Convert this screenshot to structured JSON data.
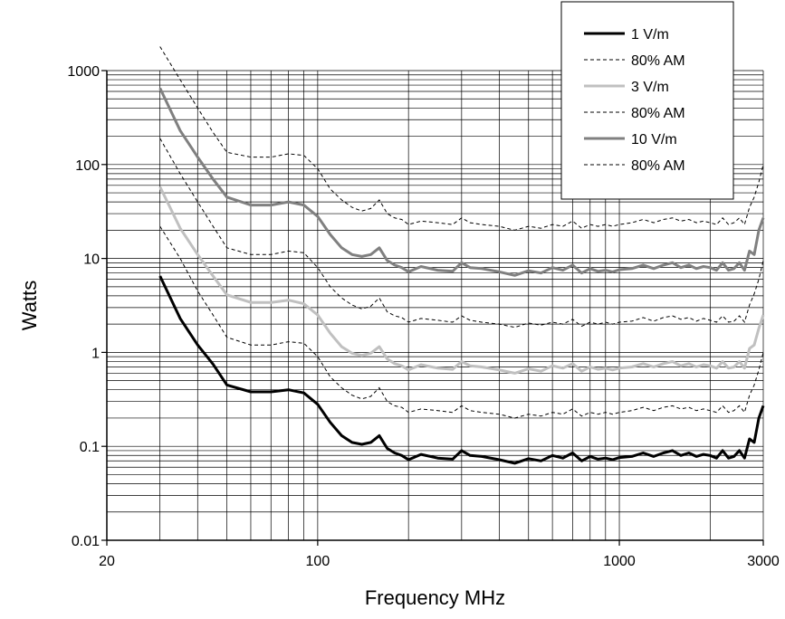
{
  "chart_data": {
    "type": "line",
    "title": "",
    "xlabel": "Frequency MHz",
    "ylabel": "Watts",
    "xscale": "log",
    "yscale": "log",
    "xlim": [
      20,
      3000
    ],
    "ylim": [
      0.01,
      1000
    ],
    "x_tick_labels": [
      "20",
      "100",
      "1000",
      "3000"
    ],
    "x_tick_values": [
      20,
      100,
      1000,
      3000
    ],
    "y_tick_labels": [
      "0.01",
      "0.1",
      "1",
      "10",
      "100",
      "1000"
    ],
    "y_tick_values": [
      0.01,
      0.1,
      1,
      10,
      100,
      1000
    ],
    "grid": true,
    "legend_position": "top-right",
    "x": [
      30,
      35,
      40,
      45,
      50,
      60,
      70,
      80,
      90,
      100,
      110,
      120,
      130,
      140,
      150,
      160,
      170,
      180,
      190,
      200,
      220,
      250,
      280,
      300,
      320,
      350,
      400,
      450,
      500,
      550,
      600,
      650,
      700,
      750,
      800,
      850,
      900,
      950,
      1000,
      1100,
      1200,
      1300,
      1400,
      1500,
      1600,
      1700,
      1800,
      1900,
      2000,
      2100,
      2200,
      2300,
      2400,
      2500,
      2600,
      2700,
      2800,
      2900,
      3000
    ],
    "series": [
      {
        "name": "1 V/m",
        "color": "#000000",
        "style": "solid",
        "values": [
          6.5,
          2.3,
          1.2,
          0.75,
          0.45,
          0.38,
          0.38,
          0.4,
          0.37,
          0.28,
          0.18,
          0.13,
          0.11,
          0.105,
          0.11,
          0.13,
          0.095,
          0.085,
          0.08,
          0.072,
          0.082,
          0.075,
          0.073,
          0.09,
          0.08,
          0.078,
          0.072,
          0.066,
          0.074,
          0.07,
          0.08,
          0.075,
          0.085,
          0.07,
          0.078,
          0.073,
          0.075,
          0.072,
          0.076,
          0.078,
          0.085,
          0.078,
          0.085,
          0.09,
          0.08,
          0.085,
          0.078,
          0.082,
          0.08,
          0.075,
          0.09,
          0.075,
          0.078,
          0.09,
          0.075,
          0.12,
          0.11,
          0.2,
          0.27
        ]
      },
      {
        "name": "80% AM",
        "color": "#000000",
        "style": "dashed",
        "values": [
          22,
          10,
          4.5,
          2.5,
          1.45,
          1.2,
          1.2,
          1.3,
          1.25,
          0.9,
          0.55,
          0.42,
          0.35,
          0.32,
          0.34,
          0.42,
          0.3,
          0.27,
          0.26,
          0.23,
          0.25,
          0.24,
          0.23,
          0.27,
          0.24,
          0.23,
          0.22,
          0.2,
          0.22,
          0.21,
          0.23,
          0.22,
          0.25,
          0.21,
          0.23,
          0.22,
          0.23,
          0.22,
          0.23,
          0.24,
          0.26,
          0.24,
          0.26,
          0.27,
          0.25,
          0.26,
          0.24,
          0.25,
          0.24,
          0.23,
          0.27,
          0.23,
          0.24,
          0.27,
          0.23,
          0.35,
          0.45,
          0.65,
          1
        ]
      },
      {
        "name": "3 V/m",
        "color": "#c0c0c0",
        "style": "solid",
        "values": [
          58,
          21,
          11,
          6.5,
          4.1,
          3.4,
          3.4,
          3.6,
          3.3,
          2.5,
          1.6,
          1.15,
          0.98,
          0.93,
          0.98,
          1.15,
          0.85,
          0.76,
          0.72,
          0.65,
          0.74,
          0.68,
          0.66,
          0.8,
          0.72,
          0.7,
          0.65,
          0.6,
          0.67,
          0.63,
          0.72,
          0.68,
          0.76,
          0.63,
          0.7,
          0.66,
          0.68,
          0.65,
          0.68,
          0.7,
          0.76,
          0.7,
          0.76,
          0.8,
          0.72,
          0.76,
          0.7,
          0.74,
          0.72,
          0.68,
          0.8,
          0.68,
          0.7,
          0.8,
          0.68,
          1.1,
          1.2,
          1.8,
          2.5
        ]
      },
      {
        "name": "80% AM",
        "color": "#000000",
        "style": "dashed",
        "values": [
          190,
          80,
          40,
          22,
          13,
          11,
          11,
          12,
          11.5,
          8,
          5,
          3.8,
          3.2,
          2.9,
          3.1,
          3.8,
          2.7,
          2.45,
          2.35,
          2.1,
          2.3,
          2.2,
          2.1,
          2.45,
          2.2,
          2.1,
          2.0,
          1.85,
          2.05,
          1.95,
          2.1,
          2.0,
          2.25,
          1.9,
          2.1,
          2.0,
          2.1,
          2.0,
          2.1,
          2.15,
          2.35,
          2.15,
          2.35,
          2.45,
          2.25,
          2.35,
          2.15,
          2.3,
          2.2,
          2.1,
          2.45,
          2.1,
          2.15,
          2.45,
          2.1,
          3.2,
          4.2,
          6,
          9.5
        ]
      },
      {
        "name": "10 V/m",
        "color": "#808080",
        "style": "solid",
        "values": [
          650,
          230,
          120,
          70,
          45,
          37,
          37,
          40,
          37,
          28,
          18,
          13,
          11,
          10.5,
          11,
          13,
          9.5,
          8.5,
          8,
          7.2,
          8.2,
          7.5,
          7.3,
          9,
          8,
          7.8,
          7.2,
          6.6,
          7.4,
          7,
          8,
          7.5,
          8.5,
          7,
          7.8,
          7.3,
          7.5,
          7.2,
          7.6,
          7.8,
          8.5,
          7.8,
          8.5,
          9,
          8,
          8.5,
          7.8,
          8.2,
          8,
          7.5,
          9,
          7.5,
          7.8,
          9,
          7.5,
          12,
          11,
          20,
          27
        ]
      },
      {
        "name": "80% AM",
        "color": "#000000",
        "style": "dashed",
        "values": [
          1800,
          800,
          400,
          220,
          135,
          120,
          120,
          130,
          125,
          90,
          55,
          42,
          35,
          32,
          34,
          42,
          30,
          27,
          26,
          23,
          25,
          24,
          23,
          27,
          24,
          23,
          22,
          20,
          22,
          21,
          23,
          22,
          25,
          21,
          23,
          22,
          23,
          22,
          23,
          24,
          26,
          24,
          26,
          27,
          25,
          26,
          24,
          25,
          24,
          23,
          27,
          23,
          24,
          27,
          23,
          35,
          45,
          65,
          100
        ]
      }
    ]
  }
}
